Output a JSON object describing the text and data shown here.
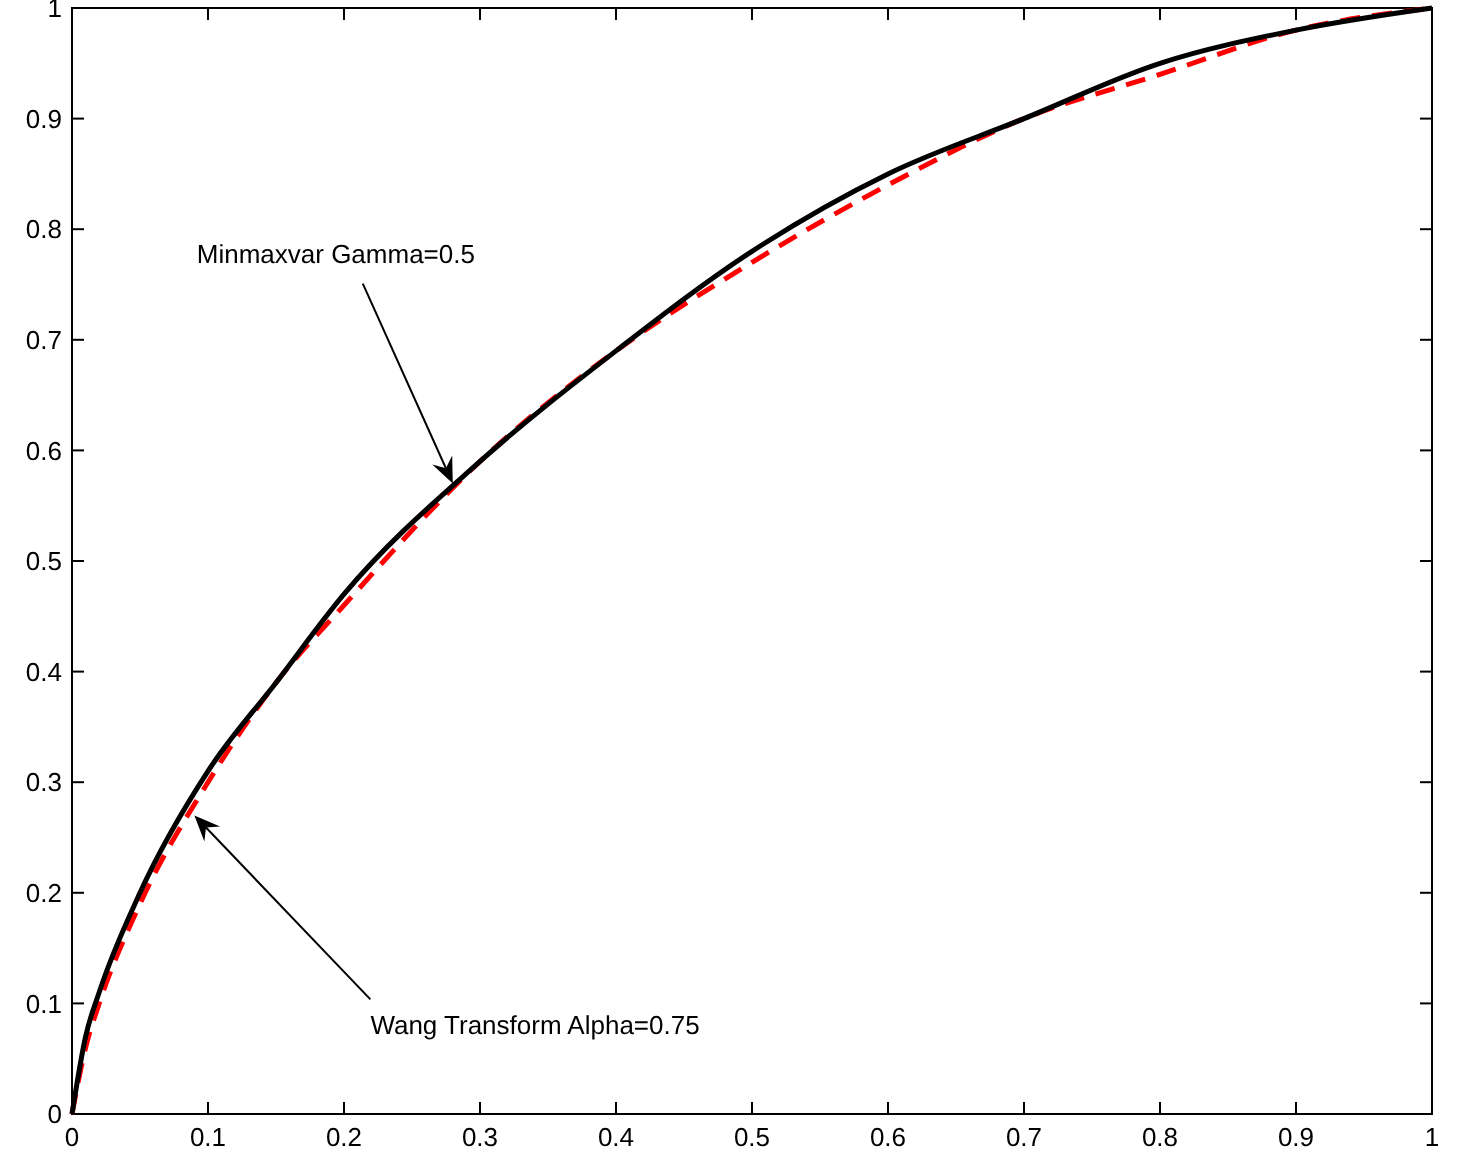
{
  "chart_data": {
    "type": "line",
    "xlim": [
      0,
      1
    ],
    "ylim": [
      0,
      1
    ],
    "xticks": [
      0,
      0.1,
      0.2,
      0.3,
      0.4,
      0.5,
      0.6,
      0.7,
      0.8,
      0.9,
      1
    ],
    "yticks": [
      0,
      0.1,
      0.2,
      0.3,
      0.4,
      0.5,
      0.6,
      0.7,
      0.8,
      0.9,
      1
    ],
    "grid": false,
    "marker": "none",
    "x": [
      0,
      0.01,
      0.02,
      0.05,
      0.1,
      0.15,
      0.2,
      0.3,
      0.4,
      0.5,
      0.6,
      0.7,
      0.8,
      0.9,
      1
    ],
    "series": [
      {
        "color": "#ff0000",
        "line_style": "dashed",
        "values": [
          0,
          0.06,
          0.1,
          0.19,
          0.3,
          0.39,
          0.46,
          0.59,
          0.69,
          0.77,
          0.84,
          0.9,
          0.94,
          0.98,
          1
        ]
      },
      {
        "color": "#000000",
        "line_style": "solid",
        "values": [
          0,
          0.07,
          0.11,
          0.2,
          0.31,
          0.39,
          0.47,
          0.59,
          0.69,
          0.78,
          0.85,
          0.9,
          0.95,
          0.98,
          1
        ]
      }
    ],
    "annotations": [
      {
        "text": "Minmaxvar Gamma=0.5",
        "x": 0.28,
        "y": 0.57
      },
      {
        "text": "Wang Transform Alpha=0.75",
        "x": 0.09,
        "y": 0.27
      }
    ]
  }
}
